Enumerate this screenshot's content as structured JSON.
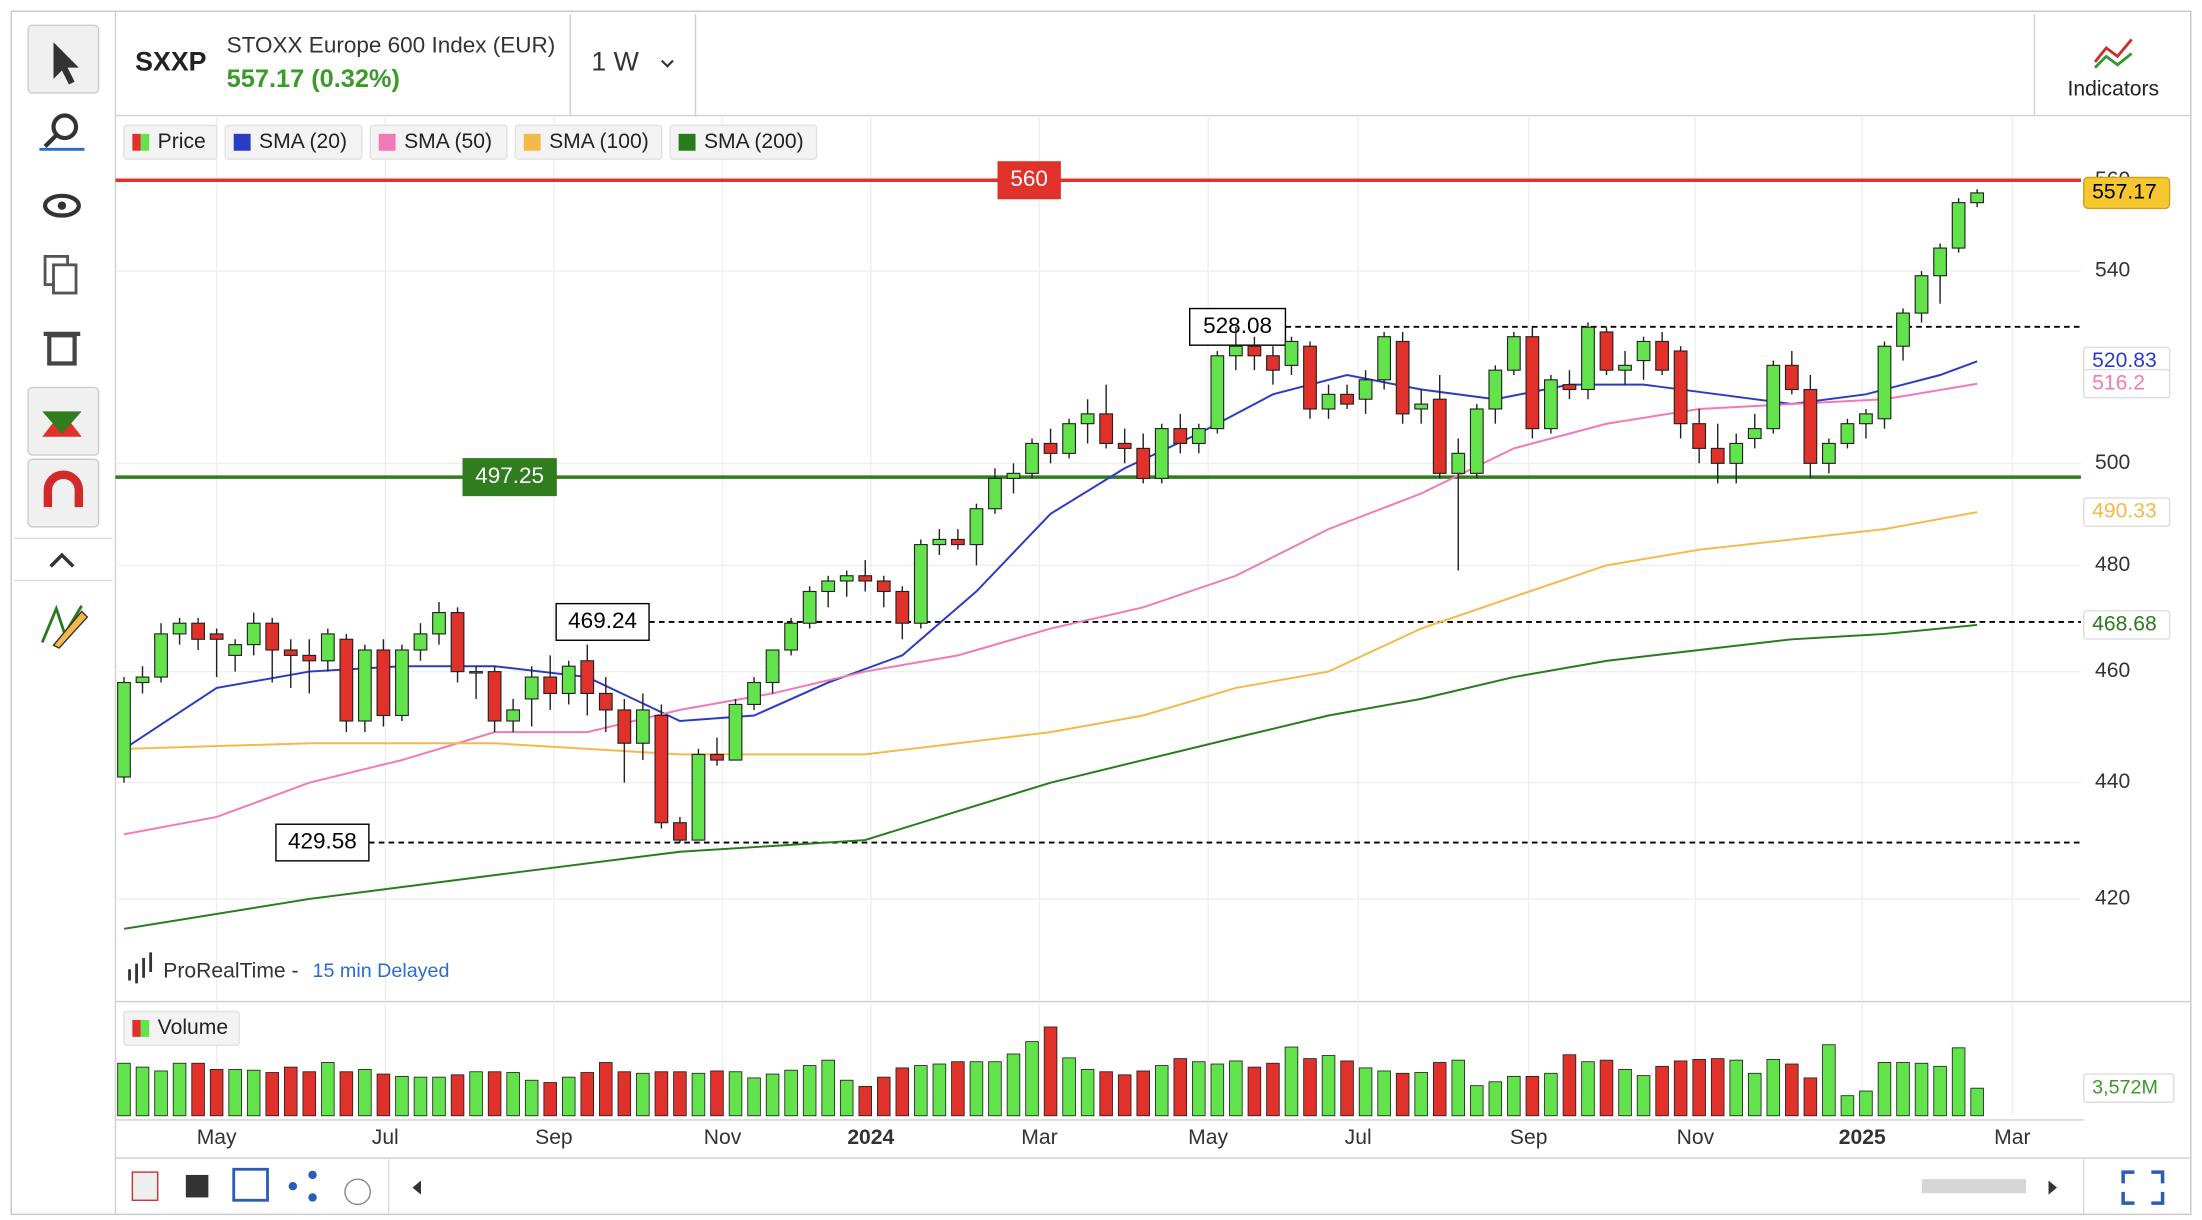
{
  "header": {
    "symbol": "SXXP",
    "name": "STOXX Europe 600 Index (EUR)",
    "quote": "557.17 (0.32%)",
    "interval": "1 W",
    "indicators": "Indicators",
    "source": "ProRealTime -",
    "delay": "15 min Delayed"
  },
  "chart_data": {
    "type": "candlestick",
    "name": "Price",
    "log_scale": true,
    "grid": true,
    "up_color": "#62e34c",
    "down_color": "#e0312a",
    "xlim": [
      -0.46,
      105.6
    ],
    "xticks": [
      {
        "value": 5.0,
        "label": "May"
      },
      {
        "value": 14.1,
        "label": "Jul"
      },
      {
        "value": 23.2,
        "label": "Sep"
      },
      {
        "value": 32.3,
        "label": "Nov"
      },
      {
        "value": 40.3,
        "label": "2024",
        "bold": true
      },
      {
        "value": 49.4,
        "label": "Mar"
      },
      {
        "value": 58.5,
        "label": "May"
      },
      {
        "value": 66.6,
        "label": "Jul"
      },
      {
        "value": 75.8,
        "label": "Sep"
      },
      {
        "value": 84.8,
        "label": "Nov"
      },
      {
        "value": 93.8,
        "label": "2025",
        "bold": true
      },
      {
        "value": 101.9,
        "label": "Mar"
      }
    ],
    "ylim": [
      403.3,
      574.7
    ],
    "yticks": [
      420,
      440,
      460,
      480,
      500,
      540,
      560
    ],
    "open": [
      441,
      458,
      459,
      467,
      469,
      467,
      463,
      465,
      469,
      464,
      463,
      462,
      466,
      451,
      464,
      452,
      464,
      467,
      471,
      460,
      460,
      451,
      455,
      459,
      456,
      462,
      456,
      453,
      447,
      452,
      433,
      430,
      445,
      444,
      454,
      458,
      464,
      469,
      475,
      477,
      478,
      477,
      475,
      469,
      484,
      485,
      484,
      491,
      497,
      498,
      504,
      502,
      508,
      510,
      504,
      503,
      497,
      507,
      504,
      507,
      522,
      524,
      522,
      520,
      524,
      511,
      514,
      513,
      517,
      525,
      511,
      513,
      498,
      498,
      511,
      519,
      526,
      507,
      516,
      515,
      527,
      519,
      521,
      525,
      523,
      508,
      503,
      500,
      505,
      507,
      520,
      515,
      500,
      504,
      508,
      509,
      524,
      531,
      539,
      545,
      555
    ],
    "high": [
      459,
      461,
      469,
      470,
      470,
      468,
      466,
      471,
      470,
      466,
      466,
      468,
      467,
      465,
      466,
      465,
      469,
      473,
      472,
      461,
      461,
      455,
      461,
      463,
      462,
      465,
      459,
      455,
      456,
      454,
      434,
      446,
      448,
      455,
      459,
      464,
      470,
      476,
      478,
      479,
      481,
      478,
      476,
      485,
      487,
      487,
      492,
      499,
      500,
      505,
      507,
      509,
      513,
      516,
      507,
      506,
      508,
      510,
      508,
      523,
      528.08,
      526,
      524,
      526,
      525,
      516,
      516,
      519,
      527,
      527,
      515,
      518,
      505,
      512,
      520,
      527,
      528,
      518,
      519,
      529,
      528,
      523,
      526,
      527,
      524,
      511,
      508,
      506,
      510,
      521,
      523,
      518,
      505,
      509,
      511,
      525,
      532,
      540,
      546,
      556,
      558
    ],
    "low": [
      440,
      456,
      458,
      465,
      464,
      459,
      460,
      463,
      458,
      457,
      456,
      460,
      449,
      449,
      450,
      451,
      462,
      465,
      458,
      455,
      449,
      449,
      450,
      453,
      454,
      452,
      449,
      440,
      444,
      432,
      429.58,
      430,
      443,
      444,
      453,
      456,
      463,
      468,
      472,
      474,
      475,
      472,
      466,
      468,
      482,
      483,
      480,
      490,
      494,
      497,
      500,
      501,
      504,
      503,
      500,
      496,
      496,
      502,
      502,
      506,
      519,
      519,
      516,
      518,
      509,
      509,
      511,
      510,
      515,
      508,
      508,
      497,
      479,
      497,
      508,
      518,
      505,
      506,
      513,
      513,
      518,
      516,
      517,
      518,
      505,
      500,
      496,
      496,
      503,
      506,
      514,
      497,
      498,
      503,
      505,
      507,
      521,
      529,
      533,
      544,
      554
    ],
    "close": [
      458,
      459,
      467,
      469,
      466,
      466,
      465,
      469,
      464,
      463,
      462,
      467,
      451,
      464,
      452,
      464,
      467,
      471,
      460,
      460,
      451,
      453,
      459,
      456,
      461,
      456,
      453,
      447,
      453,
      433,
      430,
      445,
      444,
      454,
      458,
      464,
      469,
      475,
      477,
      478,
      477,
      475,
      469,
      484,
      485,
      484,
      491,
      497,
      498,
      504,
      502,
      508,
      510,
      504,
      503,
      497,
      507,
      504,
      507,
      522,
      524,
      522,
      519,
      525,
      511,
      514,
      512,
      517,
      526,
      510,
      512,
      498,
      502,
      511,
      519,
      526,
      507,
      517,
      515,
      528,
      519,
      520,
      525,
      519,
      508,
      503,
      500,
      504,
      507,
      520,
      515,
      500,
      504,
      508,
      510,
      524,
      531,
      539,
      545,
      555,
      557.17
    ],
    "volume": {
      "name": "Volume",
      "ylim": [
        0,
        14600
      ],
      "last_label": "3,572M",
      "values": [
        6800,
        6300,
        5800,
        6800,
        6800,
        6000,
        6000,
        5900,
        5600,
        6300,
        5700,
        6900,
        5700,
        6000,
        5400,
        5100,
        5000,
        5000,
        5300,
        5700,
        5700,
        5600,
        4600,
        4300,
        5000,
        5600,
        6900,
        5700,
        5500,
        5700,
        5700,
        5500,
        5800,
        5700,
        4900,
        5400,
        5900,
        6500,
        7200,
        4600,
        3800,
        5000,
        6200,
        6500,
        6700,
        7000,
        7000,
        7000,
        8000,
        9600,
        11500,
        7500,
        6000,
        5700,
        5300,
        5800,
        6500,
        7400,
        7000,
        6700,
        7100,
        6300,
        6800,
        8900,
        7400,
        7800,
        7100,
        6200,
        5800,
        5500,
        5600,
        6900,
        7200,
        3900,
        4400,
        5100,
        5100,
        5500,
        7900,
        7000,
        7200,
        6000,
        5200,
        6400,
        7100,
        7300,
        7400,
        7200,
        5500,
        7300,
        6700,
        4900,
        9200,
        2600,
        3200,
        6900,
        6900,
        6800,
        6400,
        8800,
        3572
      ]
    },
    "series": [
      {
        "name": "SMA (20)",
        "color": "#2a3cc4",
        "x": [
          0,
          5,
          10,
          15,
          20,
          25,
          30,
          34,
          38,
          42,
          46,
          50,
          54,
          58,
          62,
          66,
          70,
          74,
          78,
          82,
          86,
          90,
          94,
          98,
          100
        ],
        "values": [
          446,
          457,
          460,
          461,
          461,
          459,
          451,
          452,
          458,
          463,
          475,
          490,
          499,
          506,
          514,
          518,
          515,
          513,
          516,
          516,
          514,
          512,
          514,
          518,
          520.83
        ]
      },
      {
        "name": "SMA (50)",
        "color": "#f07ab8",
        "x": [
          0,
          5,
          10,
          15,
          20,
          25,
          30,
          35,
          40,
          45,
          50,
          55,
          60,
          65,
          70,
          75,
          80,
          85,
          90,
          95,
          100
        ],
        "values": [
          431,
          434,
          440,
          444,
          449,
          449,
          453,
          456,
          460,
          463,
          468,
          472,
          478,
          487,
          494,
          503,
          508,
          511,
          512,
          513,
          516.2
        ]
      },
      {
        "name": "SMA (100)",
        "color": "#f5b94a",
        "x": [
          0,
          10,
          20,
          30,
          40,
          45,
          50,
          55,
          60,
          65,
          70,
          75,
          80,
          85,
          90,
          95,
          100
        ],
        "values": [
          446,
          447,
          447,
          445,
          445,
          447,
          449,
          452,
          457,
          460,
          468,
          474,
          480,
          483,
          485,
          487,
          490.33
        ]
      },
      {
        "name": "SMA (200)",
        "color": "#2a7a1e",
        "x": [
          0,
          10,
          20,
          30,
          35,
          40,
          45,
          50,
          55,
          60,
          65,
          70,
          75,
          80,
          85,
          90,
          95,
          100
        ],
        "values": [
          415,
          420,
          424,
          428,
          429,
          430,
          435,
          440,
          444,
          448,
          452,
          455,
          459,
          462,
          464,
          466,
          467,
          468.68
        ]
      }
    ],
    "levels": [
      {
        "value": 560,
        "color": "#e0312a",
        "style": "solid"
      },
      {
        "value": 497.25,
        "color": "#2f7d1f",
        "style": "solid"
      },
      {
        "value": 528.08,
        "color": "#000000",
        "style": "dashed"
      },
      {
        "value": 469.24,
        "color": "#000000",
        "style": "dashed"
      },
      {
        "value": 429.58,
        "color": "#000000",
        "style": "dashed"
      }
    ]
  }
}
